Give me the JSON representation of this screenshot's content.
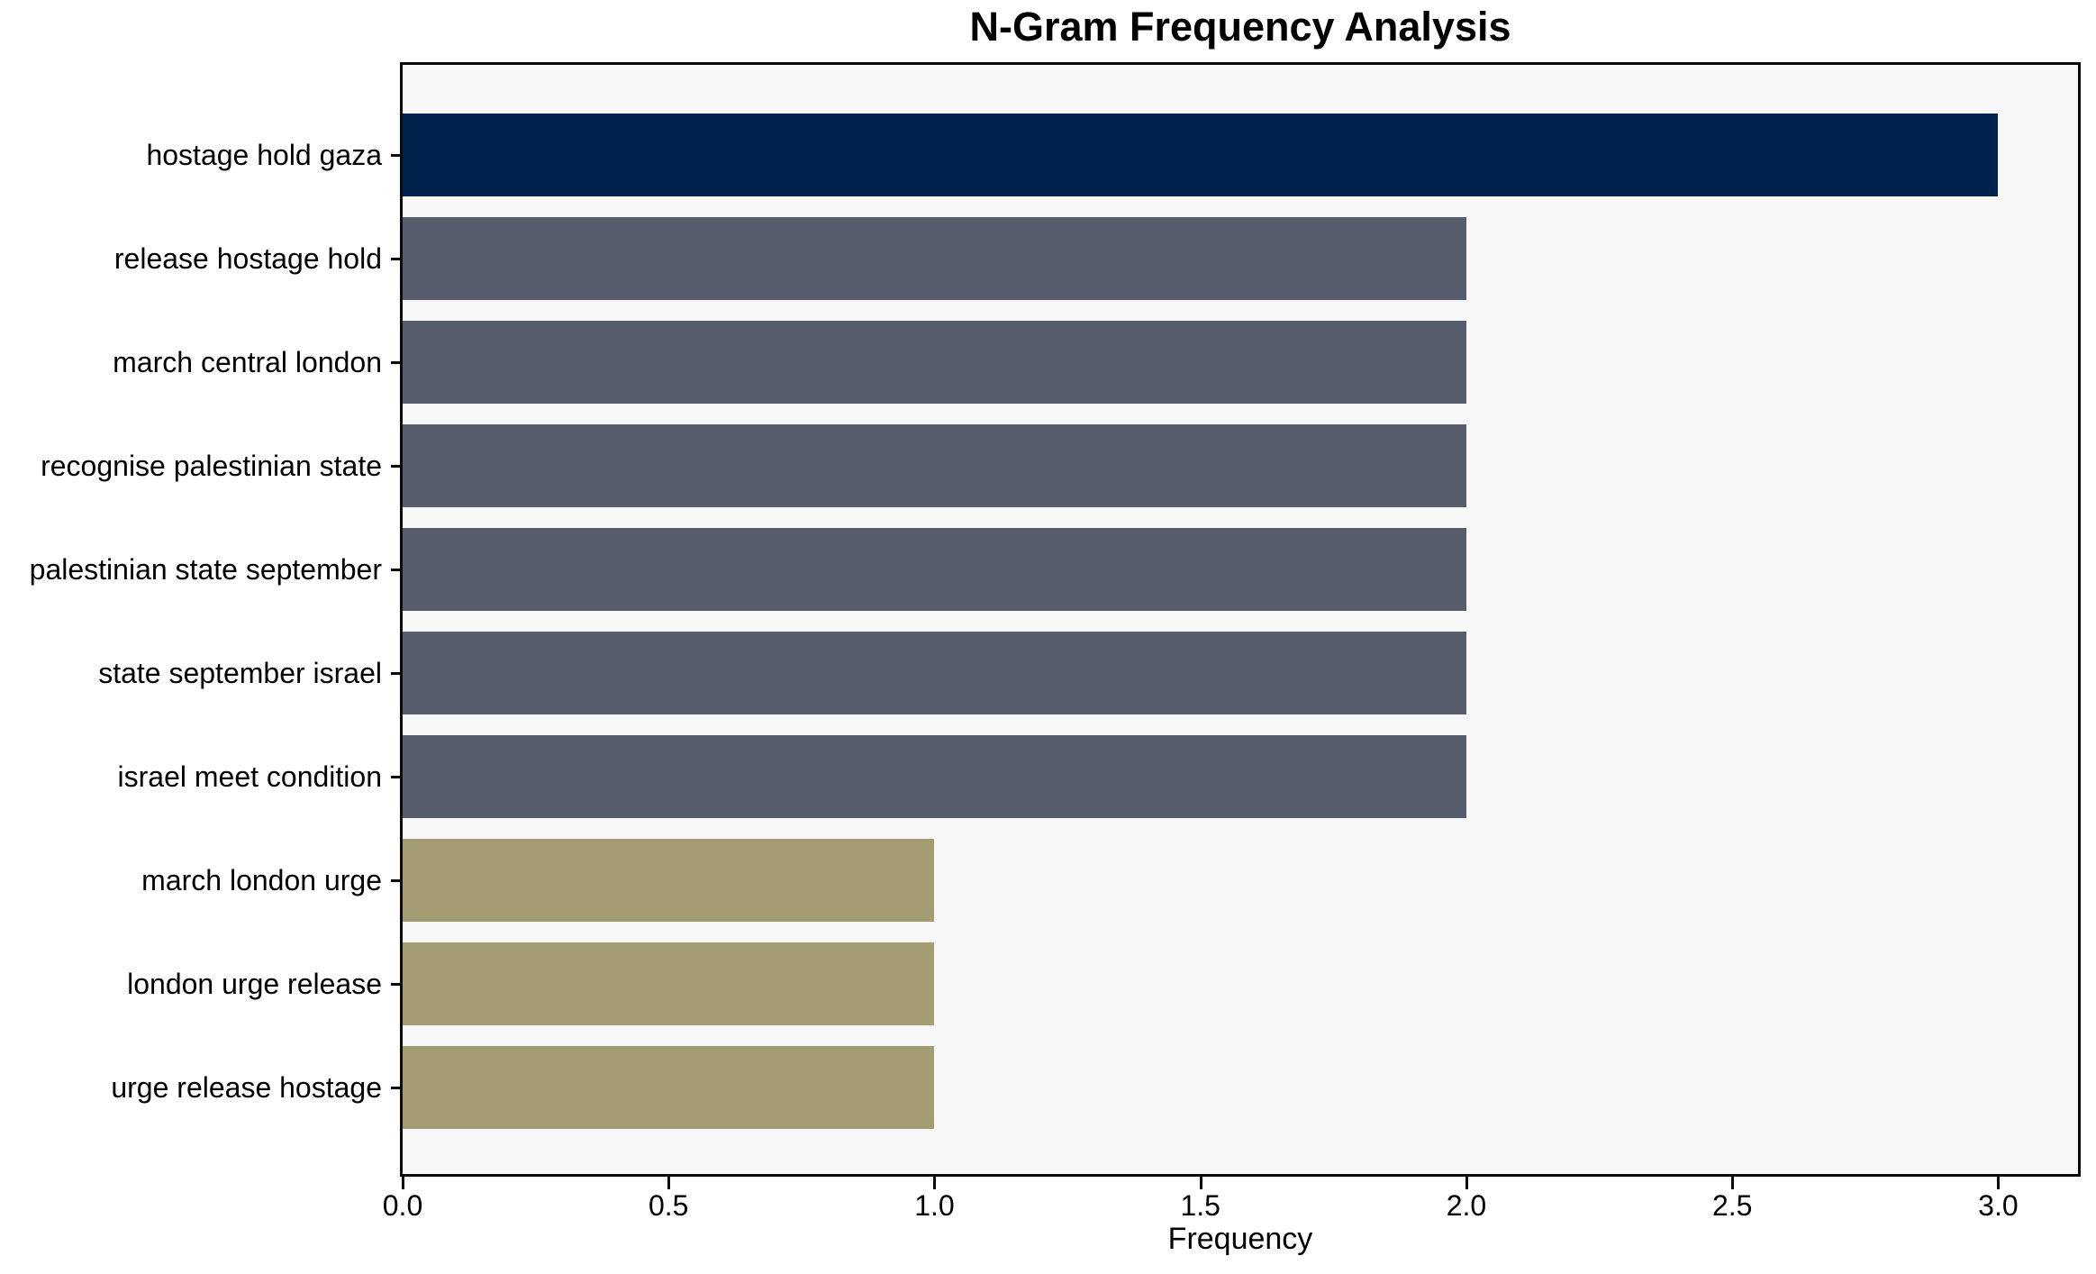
{
  "chart_data": {
    "type": "bar",
    "orientation": "horizontal",
    "title": "N-Gram Frequency Analysis",
    "xlabel": "Frequency",
    "ylabel": "",
    "categories": [
      "hostage hold gaza",
      "release hostage hold",
      "march central london",
      "recognise palestinian state",
      "palestinian state september",
      "state september israel",
      "israel meet condition",
      "march london urge",
      "london urge release",
      "urge release hostage"
    ],
    "values": [
      3,
      2,
      2,
      2,
      2,
      2,
      2,
      1,
      1,
      1
    ],
    "bar_colors": [
      "#00234E",
      "#575D6D",
      "#575D6D",
      "#575D6D",
      "#575D6D",
      "#575D6D",
      "#575D6D",
      "#A49C72",
      "#A49C72",
      "#A49C72"
    ],
    "xlim": [
      0,
      3.15
    ],
    "xtick_values": [
      0.0,
      0.5,
      1.0,
      1.5,
      2.0,
      2.5,
      3.0
    ],
    "xtick_labels": [
      "0.0",
      "0.5",
      "1.0",
      "1.5",
      "2.0",
      "2.5",
      "3.0"
    ],
    "grid": false,
    "legend": "none",
    "plot_background": "#F7F7F7",
    "figure_background": "#FFFFFF",
    "spine_color": "#0A0A0A",
    "text_color": "#000000"
  }
}
